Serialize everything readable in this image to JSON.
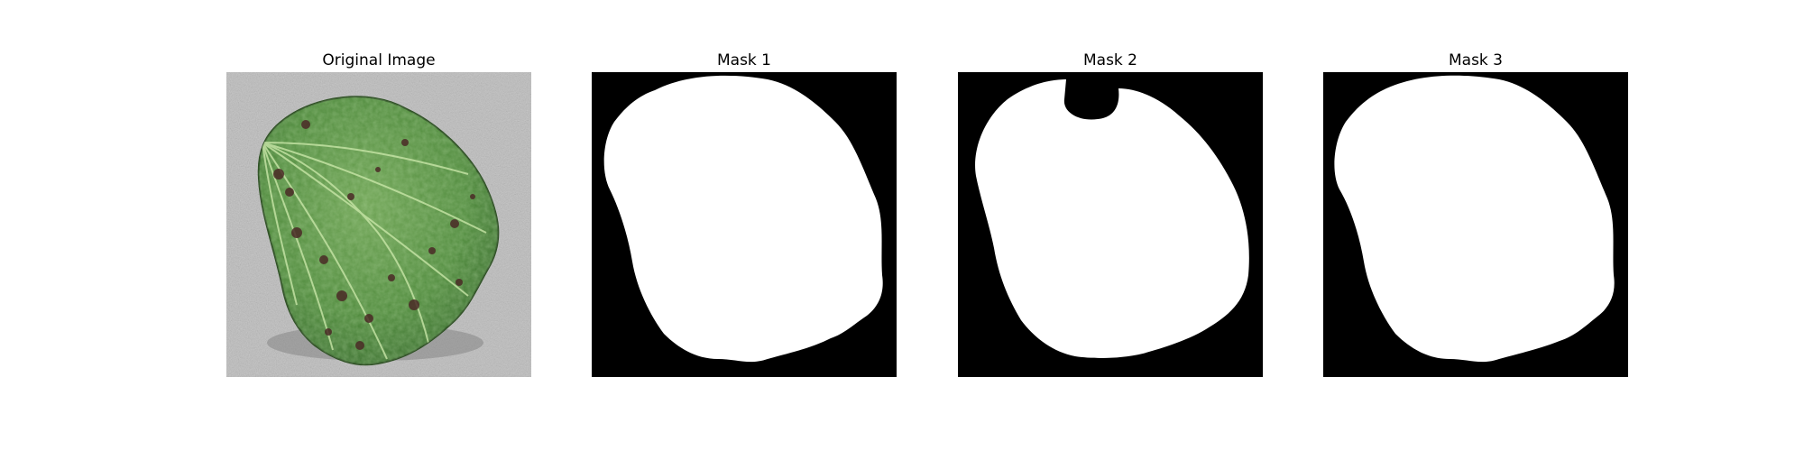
{
  "figure": {
    "panels": [
      {
        "title": "Original Image",
        "kind": "photo"
      },
      {
        "title": "Mask 1",
        "kind": "binary-mask"
      },
      {
        "title": "Mask 2",
        "kind": "binary-mask"
      },
      {
        "title": "Mask 3",
        "kind": "binary-mask"
      }
    ]
  },
  "colors": {
    "background": "#ffffff",
    "mask_foreground": "#ffffff",
    "mask_background": "#000000",
    "leaf_green": "#4f8a3c",
    "leaf_spot": "#4a2a26",
    "surface_gray": "#bdbdbd"
  }
}
